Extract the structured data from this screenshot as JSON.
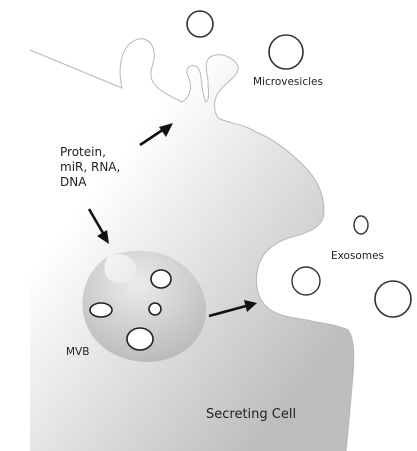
{
  "labels": {
    "microvesicles": "Microvesicles",
    "exosomes": "Exosomes",
    "mvb": "MVB",
    "secreting_cell": "Secreting Cell",
    "cargo": [
      "Protein,",
      "miR, RNA,",
      "DNA"
    ]
  },
  "colors": {
    "cell_fill_light": "#ffffff",
    "cell_fill_dark": "#bdbdbd",
    "mvb_fill_light": "#ebebeb",
    "mvb_fill_dark": "#b8b8b8",
    "outline": "#222222",
    "arrow": "#111111"
  }
}
